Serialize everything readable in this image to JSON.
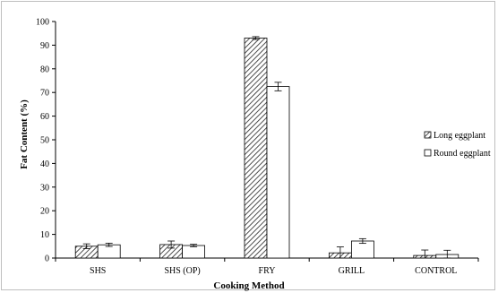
{
  "chart_data": {
    "type": "bar",
    "title": "",
    "xlabel": "Cooking Method",
    "ylabel": "Fat Content (%)",
    "ylim": [
      0,
      100
    ],
    "yticks": [
      0,
      10,
      20,
      30,
      40,
      50,
      60,
      70,
      80,
      90,
      100
    ],
    "grid": false,
    "legend_position": "right",
    "categories": [
      "SHS",
      "SHS (OP)",
      "FRY",
      "GRILL",
      "CONTROL"
    ],
    "series": [
      {
        "name": "Long eggplant",
        "pattern": "diagonal-hatch",
        "color": "#ffffff",
        "values": [
          5.0,
          5.7,
          93.0,
          2.2,
          1.1
        ],
        "errors": [
          1.0,
          1.5,
          0.6,
          2.5,
          2.3
        ]
      },
      {
        "name": "Round eggplant",
        "pattern": "none",
        "color": "#ffffff",
        "values": [
          5.6,
          5.3,
          72.5,
          7.2,
          1.5
        ],
        "errors": [
          0.7,
          0.5,
          1.8,
          1.0,
          1.8
        ]
      }
    ]
  }
}
